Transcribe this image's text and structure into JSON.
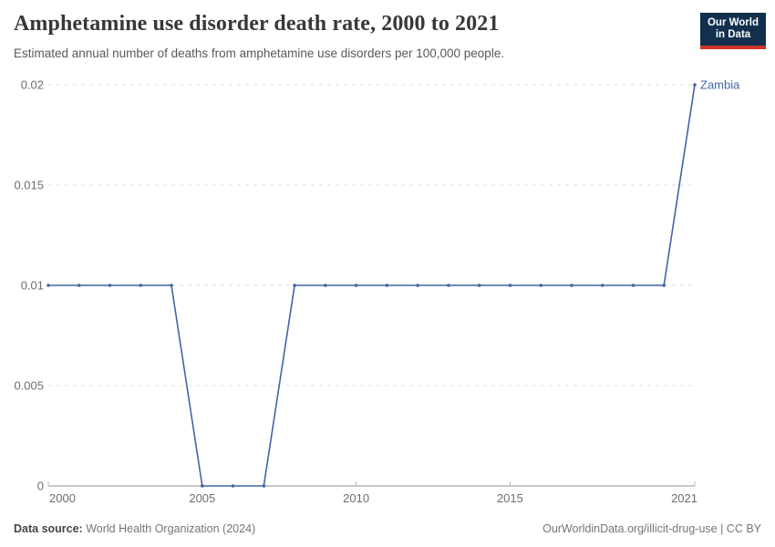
{
  "header": {
    "title": "Amphetamine use disorder death rate, 2000 to 2021",
    "subtitle": "Estimated annual number of deaths from amphetamine use disorders per 100,000 people.",
    "logo_line1": "Our World",
    "logo_line2": "in Data",
    "logo_bg_color": "#12304e",
    "logo_stripe_color": "#d0352a"
  },
  "chart_data": {
    "type": "line",
    "title": "Amphetamine use disorder death rate, 2000 to 2021",
    "x": [
      2000,
      2001,
      2002,
      2003,
      2004,
      2005,
      2006,
      2007,
      2008,
      2009,
      2010,
      2011,
      2012,
      2013,
      2014,
      2015,
      2016,
      2017,
      2018,
      2019,
      2020,
      2021
    ],
    "series": [
      {
        "name": "Zambia",
        "color": "#4165a5",
        "values": [
          0.01,
          0.01,
          0.01,
          0.01,
          0.01,
          0,
          0,
          0,
          0.01,
          0.01,
          0.01,
          0.01,
          0.01,
          0.01,
          0.01,
          0.01,
          0.01,
          0.01,
          0.01,
          0.01,
          0.01,
          0.02
        ]
      }
    ],
    "xlim": [
      2000,
      2021
    ],
    "ylim": [
      0,
      0.02
    ],
    "x_ticks": [
      {
        "value": 2000,
        "label": "2000",
        "anchor": "start"
      },
      {
        "value": 2005,
        "label": "2005",
        "anchor": "middle"
      },
      {
        "value": 2010,
        "label": "2010",
        "anchor": "middle"
      },
      {
        "value": 2015,
        "label": "2015",
        "anchor": "middle"
      },
      {
        "value": 2021,
        "label": "2021",
        "anchor": "end"
      }
    ],
    "y_ticks": [
      {
        "value": 0,
        "label": "0"
      },
      {
        "value": 0.005,
        "label": "0.005"
      },
      {
        "value": 0.01,
        "label": "0.01"
      },
      {
        "value": 0.015,
        "label": "0.015"
      },
      {
        "value": 0.02,
        "label": "0.02"
      }
    ],
    "grid": "horizontal-dashed",
    "legend_position": "end-of-line-label"
  },
  "footer": {
    "source_label": "Data source:",
    "source_value": " World Health Organization (2024)",
    "link": "OurWorldinData.org/illicit-drug-use | CC BY"
  }
}
